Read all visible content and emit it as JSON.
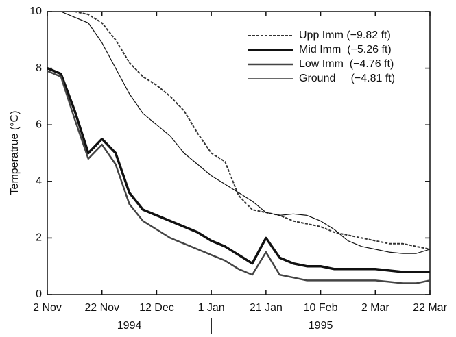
{
  "chart_data": {
    "type": "line",
    "ylabel": "Temperatrue (°C)",
    "x": [
      "1994-11-02",
      "1994-11-07",
      "1994-11-12",
      "1994-11-17",
      "1994-11-22",
      "1994-11-27",
      "1994-12-02",
      "1994-12-07",
      "1994-12-12",
      "1994-12-17",
      "1994-12-22",
      "1994-12-27",
      "1995-01-01",
      "1995-01-06",
      "1995-01-11",
      "1995-01-16",
      "1995-01-21",
      "1995-01-26",
      "1995-01-31",
      "1995-02-05",
      "1995-02-10",
      "1995-02-15",
      "1995-02-20",
      "1995-02-25",
      "1995-03-02",
      "1995-03-07",
      "1995-03-12",
      "1995-03-17",
      "1995-03-22"
    ],
    "series": [
      {
        "name": "Upp Imm (−9.82 ft)",
        "color": "#333333",
        "dash": true,
        "width": 2,
        "values": [
          null,
          null,
          10,
          9.9,
          9.6,
          9.0,
          8.2,
          7.7,
          7.4,
          7.0,
          6.5,
          5.7,
          5.0,
          4.7,
          3.5,
          3.0,
          2.9,
          2.8,
          2.6,
          2.5,
          2.4,
          2.2,
          2.1,
          2.0,
          1.9,
          1.8,
          1.8,
          1.7,
          1.6
        ]
      },
      {
        "name": "Mid Imm  (−5.26 ft)",
        "color": "#111111",
        "dash": false,
        "width": 3.5,
        "values": [
          8.0,
          7.8,
          6.5,
          5.0,
          5.5,
          5.0,
          3.6,
          3.0,
          2.8,
          2.6,
          2.4,
          2.2,
          1.9,
          1.7,
          1.4,
          1.1,
          2.0,
          1.3,
          1.1,
          1.0,
          1.0,
          0.9,
          0.9,
          0.9,
          0.9,
          0.85,
          0.8,
          0.8,
          0.8
        ]
      },
      {
        "name": "Low Imm  (−4.76 ft)",
        "color": "#444444",
        "dash": false,
        "width": 2.5,
        "values": [
          7.9,
          7.7,
          6.2,
          4.8,
          5.3,
          4.6,
          3.2,
          2.6,
          2.3,
          2.0,
          1.8,
          1.6,
          1.4,
          1.2,
          0.9,
          0.7,
          1.5,
          0.7,
          0.6,
          0.5,
          0.5,
          0.5,
          0.5,
          0.5,
          0.5,
          0.45,
          0.4,
          0.4,
          0.5
        ]
      },
      {
        "name": "Ground     (−4.81 ft)",
        "color": "#111111",
        "dash": false,
        "width": 1.2,
        "values": [
          null,
          10,
          9.8,
          9.6,
          8.9,
          8.0,
          7.1,
          6.4,
          6.0,
          5.6,
          5.0,
          4.6,
          4.2,
          3.9,
          3.6,
          3.3,
          2.9,
          2.8,
          2.85,
          2.8,
          2.6,
          2.3,
          1.9,
          1.7,
          1.6,
          1.5,
          1.45,
          1.45,
          1.6
        ]
      }
    ],
    "xlim": [
      "1994-11-02",
      "1995-03-22"
    ],
    "xticks": [
      {
        "value": "1994-11-02",
        "label": "2 Nov"
      },
      {
        "value": "1994-11-22",
        "label": "22 Nov"
      },
      {
        "value": "1994-12-12",
        "label": "12 Dec"
      },
      {
        "value": "1995-01-01",
        "label": "1 Jan"
      },
      {
        "value": "1995-01-21",
        "label": "21 Jan"
      },
      {
        "value": "1995-02-10",
        "label": "10 Feb"
      },
      {
        "value": "1995-03-02",
        "label": "2 Mar"
      },
      {
        "value": "1995-03-22",
        "label": "22 Mar"
      }
    ],
    "year_labels": [
      "1994",
      "1995"
    ],
    "ylim": [
      0,
      10
    ],
    "yticks": [
      0,
      2,
      4,
      6,
      8,
      10
    ],
    "legend": "upper right"
  }
}
